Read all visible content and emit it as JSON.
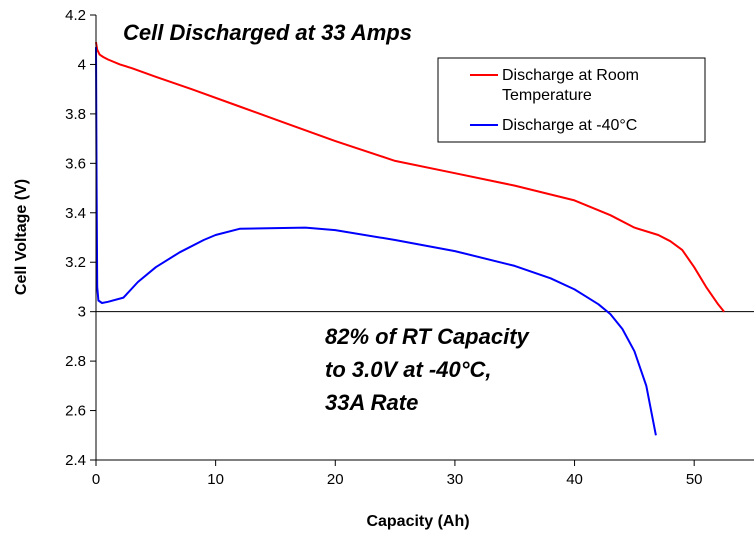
{
  "chart_data": {
    "type": "line",
    "title": "Cell Discharged at 33 Amps",
    "xlabel": "Capacity (Ah)",
    "ylabel": "Cell Voltage (V)",
    "xlim": [
      0,
      55
    ],
    "ylim": [
      2.4,
      4.2
    ],
    "x_ticks": [
      "0",
      "10",
      "20",
      "30",
      "40",
      "50"
    ],
    "y_ticks": [
      "2.4",
      "2.6",
      "2.8",
      "3",
      "3.2",
      "3.4",
      "3.6",
      "3.8",
      "4",
      "4.2"
    ],
    "reference_line_y": 3.0,
    "legend_position": "top-right",
    "annotation": [
      "82% of RT Capacity",
      "to 3.0V at -40°C,",
      "33A Rate"
    ],
    "series": [
      {
        "name": "Discharge at Room Temperature",
        "color": "#ff0000",
        "x": [
          0,
          0.1,
          0.3,
          0.6,
          1,
          2,
          3,
          5,
          8,
          12,
          16,
          20,
          25,
          30,
          35,
          40,
          43,
          45,
          47,
          48,
          49,
          50,
          51,
          52,
          52.5
        ],
        "y": [
          4.09,
          4.06,
          4.04,
          4.03,
          4.02,
          4.0,
          3.985,
          3.95,
          3.9,
          3.83,
          3.76,
          3.69,
          3.61,
          3.56,
          3.51,
          3.45,
          3.39,
          3.34,
          3.31,
          3.285,
          3.25,
          3.18,
          3.1,
          3.03,
          3.0
        ]
      },
      {
        "name": "Discharge at -40°C",
        "color": "#0000ff",
        "x": [
          0,
          0.05,
          0.1,
          0.2,
          0.5,
          1,
          2.3,
          3.5,
          5,
          7,
          9,
          10,
          12,
          15,
          17.5,
          20,
          25,
          30,
          35,
          38,
          40,
          41,
          42,
          43,
          44,
          45,
          46,
          46.8
        ],
        "y": [
          4.07,
          3.5,
          3.1,
          3.045,
          3.035,
          3.04,
          3.057,
          3.12,
          3.18,
          3.24,
          3.29,
          3.31,
          3.335,
          3.338,
          3.34,
          3.33,
          3.29,
          3.245,
          3.185,
          3.135,
          3.09,
          3.06,
          3.03,
          2.99,
          2.93,
          2.84,
          2.7,
          2.5
        ]
      }
    ]
  }
}
